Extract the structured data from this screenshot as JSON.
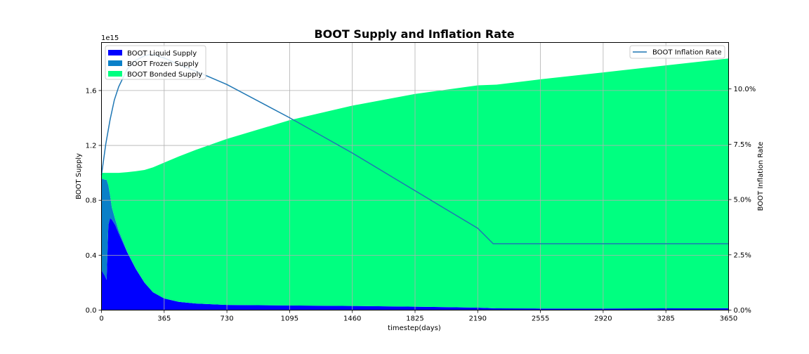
{
  "chart_data": {
    "type": "area",
    "title": "BOOT Supply and Inflation Rate",
    "xlabel": "timestep(days)",
    "ylabel_left": "BOOT Supply",
    "ylabel_right": "BOOT Inflation Rate",
    "left_axis_offset": "1e15",
    "x_ticks": [
      0,
      365,
      730,
      1095,
      1460,
      1825,
      2190,
      2555,
      2920,
      3285,
      3650
    ],
    "xlim": [
      0,
      3650
    ],
    "y_left_ticks": [
      0.0,
      0.4,
      0.8,
      1.2,
      1.6
    ],
    "y_left_tick_labels": [
      "0.0",
      "0.4",
      "0.8",
      "1.2",
      "1.6"
    ],
    "y_left_lim": [
      0,
      1.95
    ],
    "y_right_ticks": [
      0,
      2.5,
      5.0,
      7.5,
      10.0
    ],
    "y_right_tick_labels": [
      "0.0%",
      "2.5%",
      "5.0%",
      "7.5%",
      "10.0%"
    ],
    "y_right_lim": [
      0,
      12.1
    ],
    "grid": true,
    "legend_left_placement": "top-left",
    "legend_right_placement": "top-right",
    "legend_left": [
      {
        "label": "BOOT Liquid Supply",
        "color": "#0000ff"
      },
      {
        "label": "BOOT Frozen Supply",
        "color": "#0a80c8"
      },
      {
        "label": "BOOT Bonded Supply",
        "color": "#00ff80"
      }
    ],
    "legend_right": [
      {
        "label": "BOOT Inflation Rate",
        "color": "#1f77b4"
      }
    ],
    "stacked_series": [
      {
        "name": "BOOT Liquid Supply",
        "color": "#0000ff",
        "x": [
          0,
          20,
          30,
          40,
          50,
          60,
          80,
          100,
          150,
          200,
          250,
          300,
          365,
          450,
          550,
          730,
          1095,
          1460,
          1825,
          2190,
          2300,
          2555,
          2920,
          3285,
          3650
        ],
        "values": [
          0.29,
          0.25,
          0.22,
          0.62,
          0.67,
          0.66,
          0.62,
          0.56,
          0.42,
          0.3,
          0.2,
          0.13,
          0.085,
          0.06,
          0.048,
          0.038,
          0.034,
          0.03,
          0.025,
          0.018,
          0.013,
          0.012,
          0.012,
          0.013,
          0.014
        ]
      },
      {
        "name": "BOOT Frozen Supply",
        "color": "#0a80c8",
        "x": [
          0,
          20,
          30,
          40,
          50,
          60,
          80,
          100,
          150,
          200,
          250,
          300,
          365,
          450,
          550,
          730,
          1095,
          1460,
          1825,
          2190,
          2300,
          2555,
          2920,
          3285,
          3650
        ],
        "values": [
          0.67,
          0.7,
          0.73,
          0.29,
          0.17,
          0.09,
          0.04,
          0.02,
          0.005,
          0.002,
          0.001,
          0,
          0,
          0,
          0,
          0,
          0,
          0,
          0,
          0,
          0,
          0,
          0,
          0,
          0
        ]
      },
      {
        "name": "BOOT Bonded Supply",
        "color": "#00ff80",
        "x": [
          0,
          20,
          30,
          40,
          50,
          60,
          80,
          100,
          150,
          200,
          250,
          300,
          365,
          450,
          550,
          730,
          1095,
          1460,
          1825,
          2190,
          2300,
          2555,
          2920,
          3285,
          3650
        ],
        "values": [
          0.04,
          0.05,
          0.05,
          0.09,
          0.16,
          0.25,
          0.34,
          0.42,
          0.58,
          0.71,
          0.82,
          0.91,
          0.99,
          1.06,
          1.12,
          1.21,
          1.35,
          1.46,
          1.55,
          1.62,
          1.63,
          1.67,
          1.72,
          1.77,
          1.82
        ]
      }
    ],
    "line_series": [
      {
        "name": "BOOT Inflation Rate",
        "color": "#1f77b4",
        "axis": "right",
        "x": [
          0,
          25,
          50,
          75,
          100,
          150,
          200,
          250,
          280,
          300,
          365,
          450,
          550,
          730,
          1095,
          1460,
          1825,
          2190,
          2280,
          2555,
          2920,
          3285,
          3650
        ],
        "values": [
          6.1,
          7.5,
          8.6,
          9.5,
          10.1,
          10.9,
          11.3,
          11.5,
          11.55,
          11.55,
          11.4,
          11.1,
          10.8,
          10.2,
          8.7,
          7.1,
          5.4,
          3.7,
          3.0,
          3.0,
          3.0,
          3.0,
          3.0
        ]
      }
    ]
  }
}
